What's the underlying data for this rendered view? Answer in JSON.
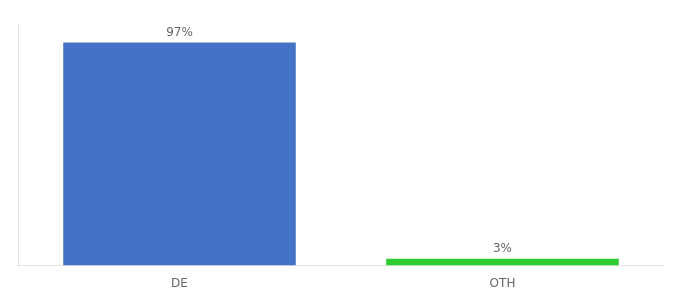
{
  "chart_data": {
    "type": "bar",
    "categories": [
      "DE",
      "OTH"
    ],
    "values": [
      97,
      3
    ],
    "value_labels": [
      "97%",
      "3%"
    ],
    "colors": [
      "#4472c4",
      "#2ecc2e"
    ],
    "ylim": [
      0,
      105
    ],
    "yticks": [],
    "tick_labels": "x",
    "data_labels": true,
    "grid": false
  }
}
